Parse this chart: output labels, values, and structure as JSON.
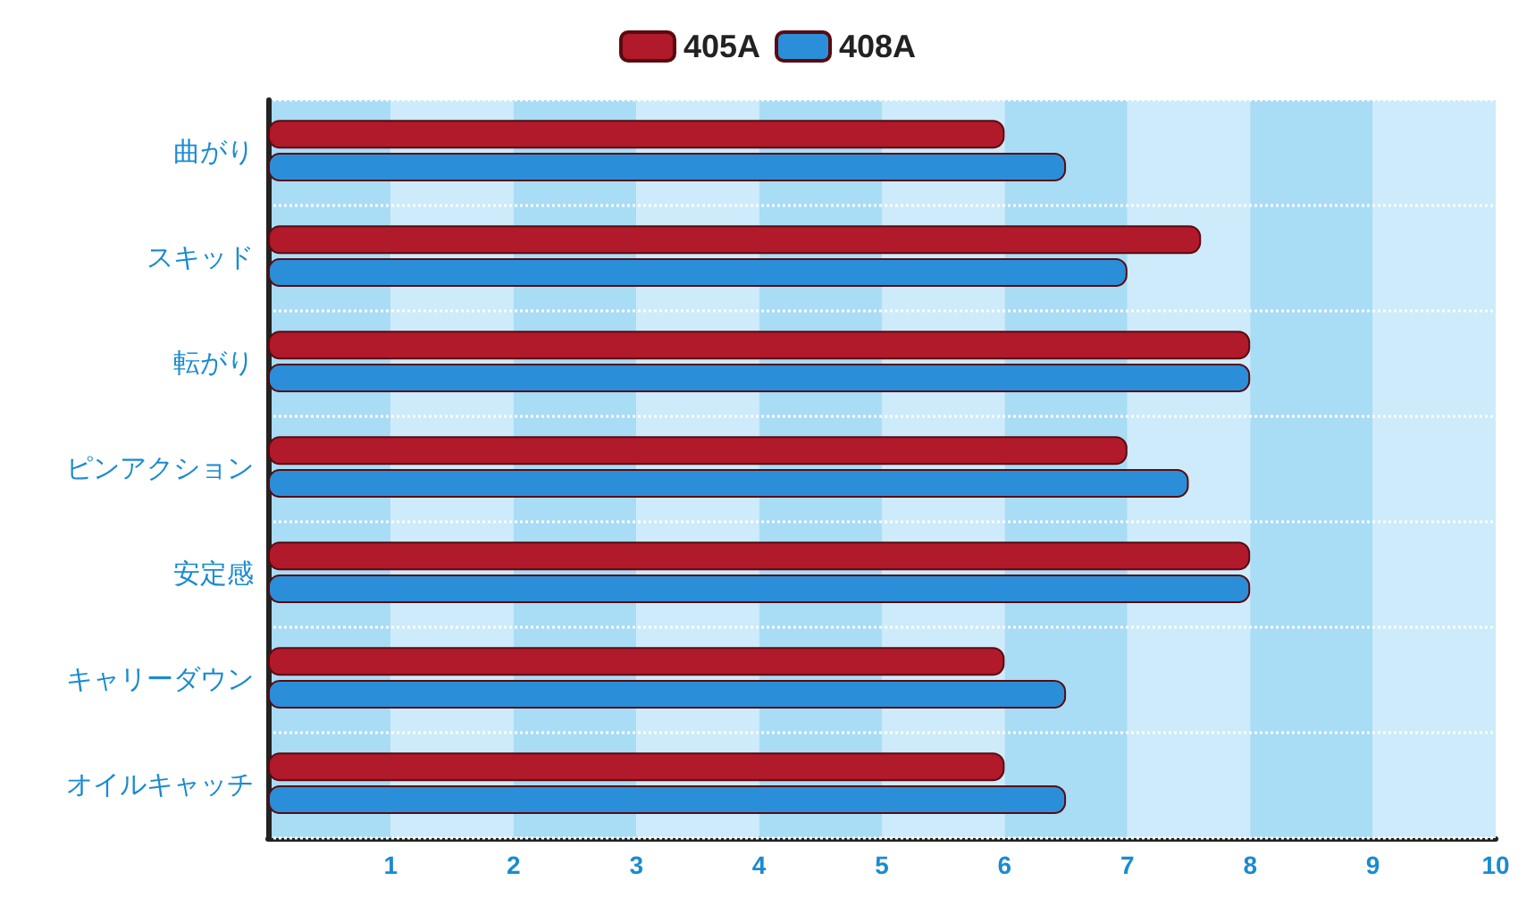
{
  "chart_data": {
    "type": "bar",
    "orientation": "horizontal",
    "categories": [
      "曲がり",
      "スキッド",
      "転がり",
      "ピンアクション",
      "安定感",
      "キャリーダウン",
      "オイルキャッチ"
    ],
    "series": [
      {
        "name": "405A",
        "color": "#b01a2a",
        "values": [
          6,
          7.6,
          8,
          7,
          8,
          6,
          6
        ]
      },
      {
        "name": "408A",
        "color": "#2a8fd8",
        "values": [
          6.5,
          7,
          8,
          7.5,
          8,
          6.5,
          6.5
        ]
      }
    ],
    "xlim": [
      0,
      10
    ],
    "xticks": [
      1,
      2,
      3,
      4,
      5,
      6,
      7,
      8,
      9,
      10
    ],
    "grid": "y",
    "legend": "top",
    "bands": [
      {
        "axis": "x",
        "from": 0,
        "to": 1,
        "color": "#a9dcf5"
      },
      {
        "axis": "x",
        "from": 1,
        "to": 2,
        "color": "#cdebfa"
      },
      {
        "axis": "x",
        "from": 2,
        "to": 3,
        "color": "#a9dcf5"
      },
      {
        "axis": "x",
        "from": 3,
        "to": 4,
        "color": "#cdebfa"
      },
      {
        "axis": "x",
        "from": 4,
        "to": 5,
        "color": "#a9dcf5"
      },
      {
        "axis": "x",
        "from": 5,
        "to": 6,
        "color": "#cdebfa"
      },
      {
        "axis": "x",
        "from": 6,
        "to": 7,
        "color": "#a9dcf5"
      },
      {
        "axis": "x",
        "from": 7,
        "to": 8,
        "color": "#cdebfa"
      },
      {
        "axis": "x",
        "from": 8,
        "to": 9,
        "color": "#a9dcf5"
      },
      {
        "axis": "x",
        "from": 9,
        "to": 10,
        "color": "#cdebfa"
      }
    ]
  }
}
